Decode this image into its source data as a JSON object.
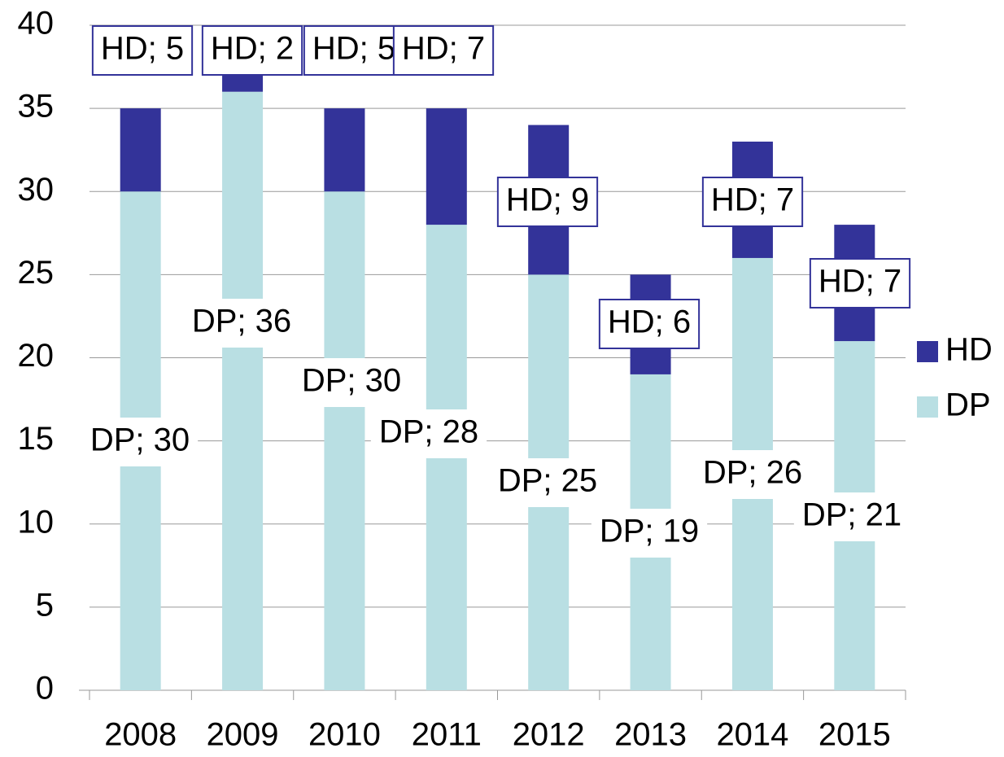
{
  "chart_data": {
    "type": "stacked_bar",
    "categories": [
      "2008",
      "2009",
      "2010",
      "2011",
      "2012",
      "2013",
      "2014",
      "2015"
    ],
    "series": [
      {
        "name": "DP",
        "color": "#b9dfe3",
        "values": [
          30,
          36,
          30,
          28,
          25,
          19,
          26,
          21
        ],
        "value_labels": [
          "DP; 30",
          "DP; 36",
          "DP; 30",
          "DP; 28",
          "DP; 25",
          "DP; 19",
          "DP; 26",
          "DP; 21"
        ]
      },
      {
        "name": "HD",
        "color": "#333399",
        "values": [
          5,
          2,
          5,
          7,
          9,
          6,
          7,
          7
        ],
        "value_labels": [
          "HD; 5",
          "HD; 2",
          "HD; 5",
          "HD; 7",
          "HD; 9",
          "HD; 6",
          "HD; 7",
          "HD; 7"
        ]
      }
    ],
    "ylim": [
      0,
      40
    ],
    "yticks": [
      0,
      5,
      10,
      15,
      20,
      25,
      30,
      35,
      40
    ],
    "grid": true,
    "legend": "right"
  }
}
